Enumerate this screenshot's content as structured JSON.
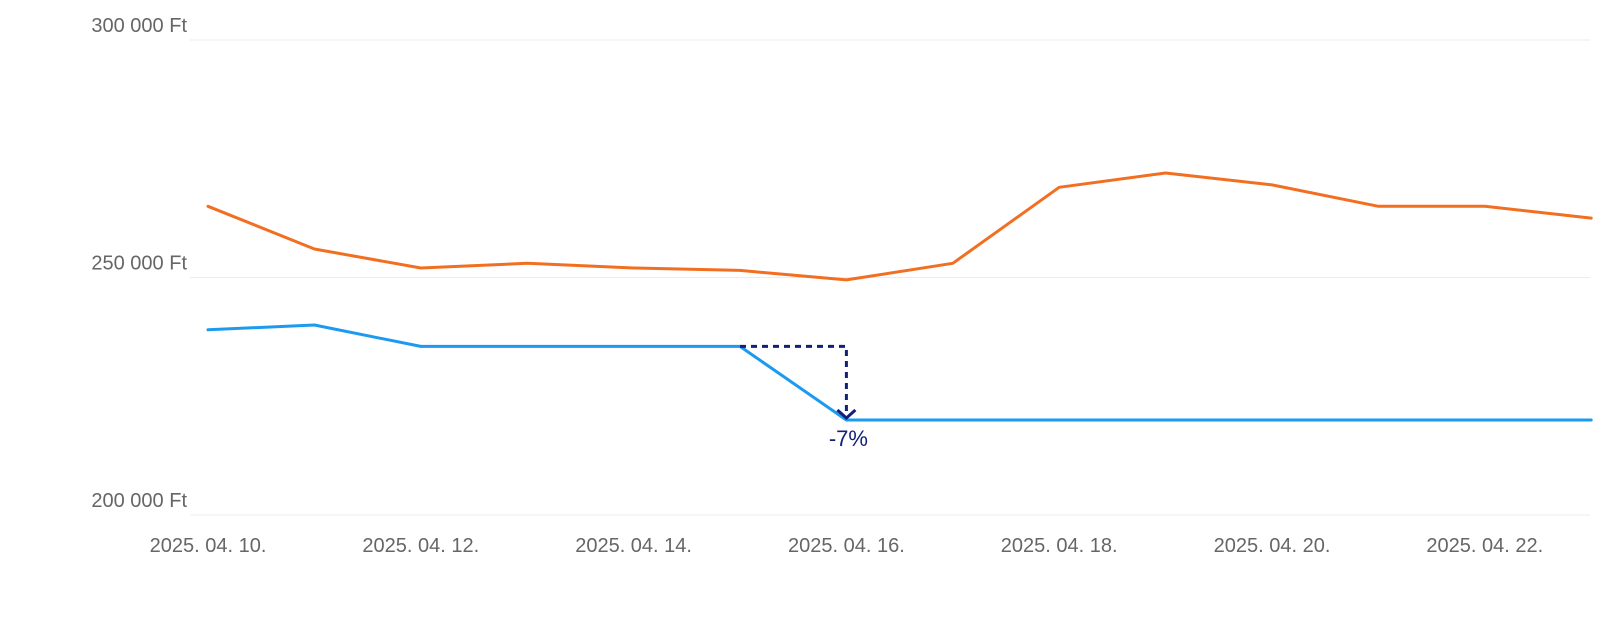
{
  "chart_data": {
    "type": "line",
    "x": [
      "2025-04-10",
      "2025-04-11",
      "2025-04-12",
      "2025-04-13",
      "2025-04-14",
      "2025-04-15",
      "2025-04-16",
      "2025-04-17",
      "2025-04-18",
      "2025-04-19",
      "2025-04-20",
      "2025-04-21",
      "2025-04-22",
      "2025-04-23"
    ],
    "x_tick_labels": [
      {
        "x": "2025-04-10",
        "label": "2025. 04. 10."
      },
      {
        "x": "2025-04-12",
        "label": "2025. 04. 12."
      },
      {
        "x": "2025-04-14",
        "label": "2025. 04. 14."
      },
      {
        "x": "2025-04-16",
        "label": "2025. 04. 16."
      },
      {
        "x": "2025-04-18",
        "label": "2025. 04. 18."
      },
      {
        "x": "2025-04-20",
        "label": "2025. 04. 20."
      },
      {
        "x": "2025-04-22",
        "label": "2025. 04. 22."
      }
    ],
    "y_ticks": [
      {
        "value": 200000,
        "label": "200 000 Ft"
      },
      {
        "value": 250000,
        "label": "250 000 Ft"
      },
      {
        "value": 300000,
        "label": "300 000 Ft"
      }
    ],
    "ylim": [
      200000,
      300000
    ],
    "grid": true,
    "series": [
      {
        "color": "#f26f21",
        "values": [
          265000,
          256000,
          252000,
          253000,
          252000,
          251500,
          249500,
          253000,
          269000,
          272000,
          269500,
          265000,
          265000,
          262500
        ]
      },
      {
        "color": "#1c9af0",
        "values": [
          239000,
          240000,
          235500,
          235500,
          235500,
          235500,
          220000,
          220000,
          220000,
          220000,
          220000,
          220000,
          220000,
          220000
        ]
      }
    ],
    "annotation": {
      "label": "-7%",
      "from": {
        "x": "2025-04-15",
        "y": 235500
      },
      "to": {
        "x": "2025-04-16",
        "y": 220000
      },
      "color": "#13207a"
    }
  }
}
